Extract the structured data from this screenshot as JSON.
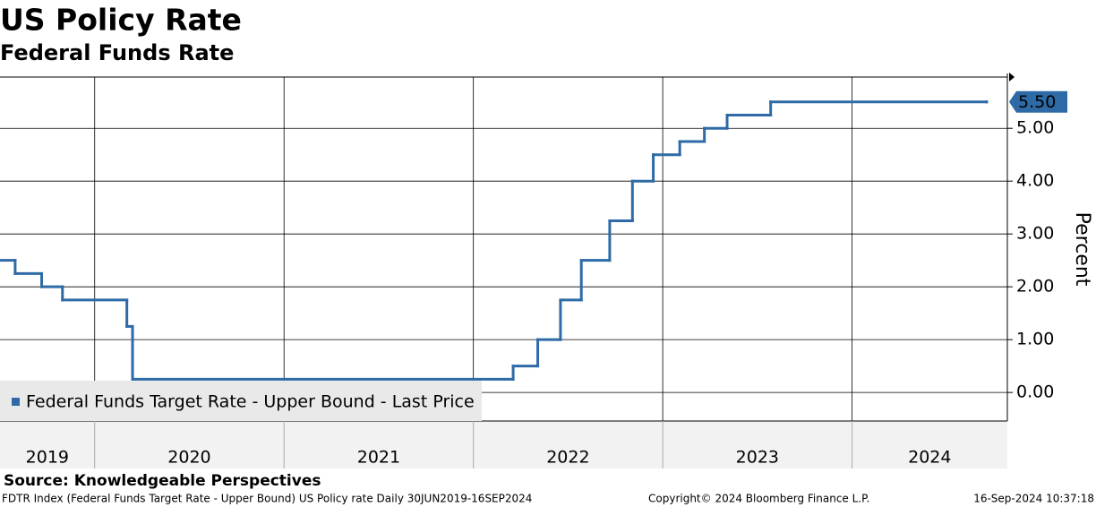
{
  "chart_data": {
    "type": "step",
    "title": "US Policy Rate",
    "subtitle": "Federal Funds Rate",
    "y_label": "Percent",
    "x": [
      2019.49,
      2019.58,
      2019.72,
      2019.83,
      2020.17,
      2020.2,
      2022.21,
      2022.34,
      2022.46,
      2022.57,
      2022.72,
      2022.84,
      2022.95,
      2023.09,
      2023.22,
      2023.34,
      2023.57,
      2024.71
    ],
    "series": [
      {
        "name": "Federal Funds Target Rate - Upper Bound - Last Price",
        "color": "#2e6ba6",
        "values": [
          2.5,
          2.25,
          2.0,
          1.75,
          1.25,
          0.25,
          0.5,
          1.0,
          1.75,
          2.5,
          3.25,
          4.0,
          4.5,
          4.75,
          5.0,
          5.25,
          5.5,
          5.5
        ]
      }
    ],
    "last_price": {
      "value": 5.5,
      "label": "5.50"
    },
    "xlim": [
      2019.5,
      2024.82
    ],
    "xticks": [
      {
        "value": 2019.75,
        "label": "2019"
      },
      {
        "value": 2020.5,
        "label": "2020"
      },
      {
        "value": 2021.5,
        "label": "2021"
      },
      {
        "value": 2022.5,
        "label": "2022"
      },
      {
        "value": 2023.5,
        "label": "2023"
      },
      {
        "value": 2024.41,
        "label": "2024"
      }
    ],
    "ylim": [
      -0.54,
      5.97
    ],
    "yticks": [
      {
        "value": 0,
        "label": "0.00"
      },
      {
        "value": 1,
        "label": "1.00"
      },
      {
        "value": 2,
        "label": "2.00"
      },
      {
        "value": 3,
        "label": "3.00"
      },
      {
        "value": 4,
        "label": "4.00"
      },
      {
        "value": 5,
        "label": "5.00"
      }
    ],
    "grid": true,
    "legend": "lower left",
    "source": "Source: Knowledgeable Perspectives",
    "footer_left": "FDTR Index (Federal Funds Target Rate - Upper Bound) US Policy rate  Daily 30JUN2019-16SEP2024",
    "footer_center": "Copyright© 2024 Bloomberg Finance L.P.",
    "footer_right": "16-Sep-2024 10:37:18"
  }
}
